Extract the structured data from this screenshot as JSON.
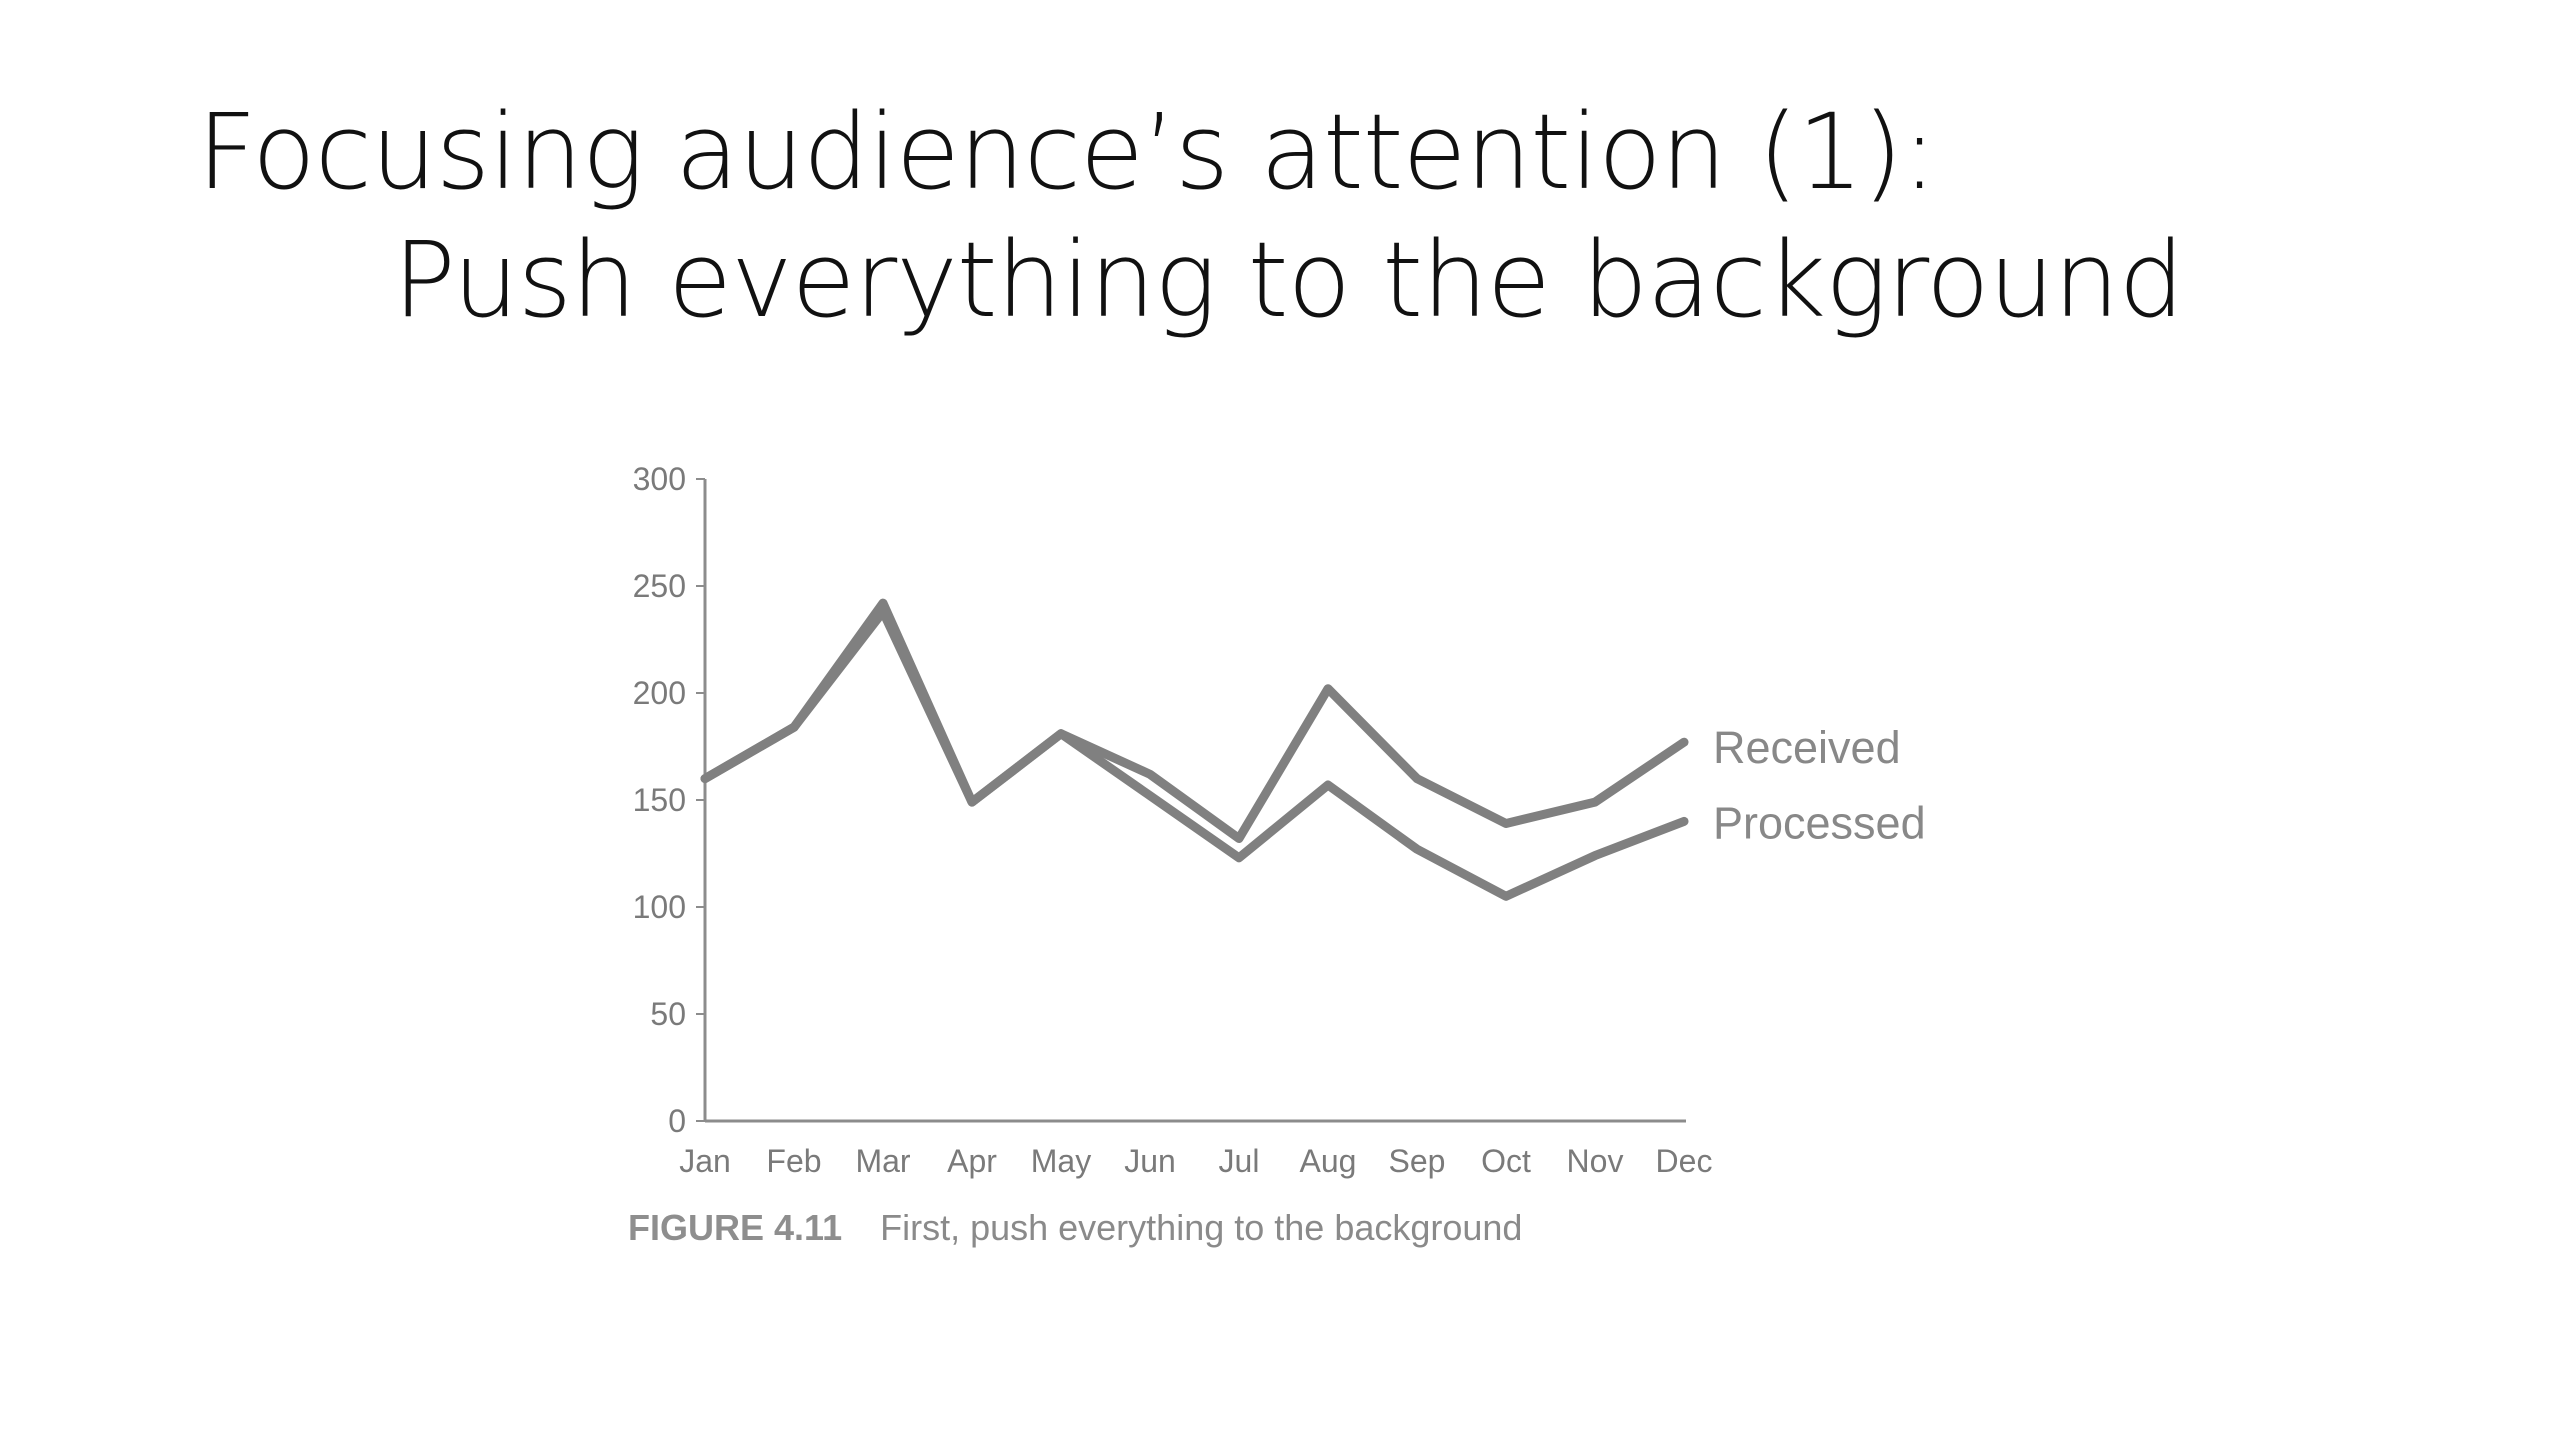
{
  "slide": {
    "title_line1": "Focusing audience’s attention (1):",
    "title_line2": "Push everything to the background"
  },
  "figure": {
    "number": "FIGURE 4.11",
    "caption": "First, push everything to the background"
  },
  "colors": {
    "series_line": "#808080",
    "axis": "#8c8c8c",
    "label_text": "#888888"
  },
  "chart_data": {
    "type": "line",
    "title": "",
    "xlabel": "",
    "ylabel": "",
    "categories": [
      "Jan",
      "Feb",
      "Mar",
      "Apr",
      "May",
      "Jun",
      "Jul",
      "Aug",
      "Sep",
      "Oct",
      "Nov",
      "Dec"
    ],
    "ylim": [
      0,
      300
    ],
    "yticks": [
      0,
      50,
      100,
      150,
      200,
      250,
      300
    ],
    "grid": false,
    "legend": "direct labels at line ends (right)",
    "series": [
      {
        "name": "Received",
        "values": [
          160,
          184,
          242,
          149,
          181,
          162,
          132,
          202,
          160,
          139,
          149,
          177
        ]
      },
      {
        "name": "Processed",
        "values": [
          160,
          184,
          238,
          149,
          181,
          152,
          123,
          157,
          127,
          105,
          124,
          140
        ]
      }
    ]
  }
}
